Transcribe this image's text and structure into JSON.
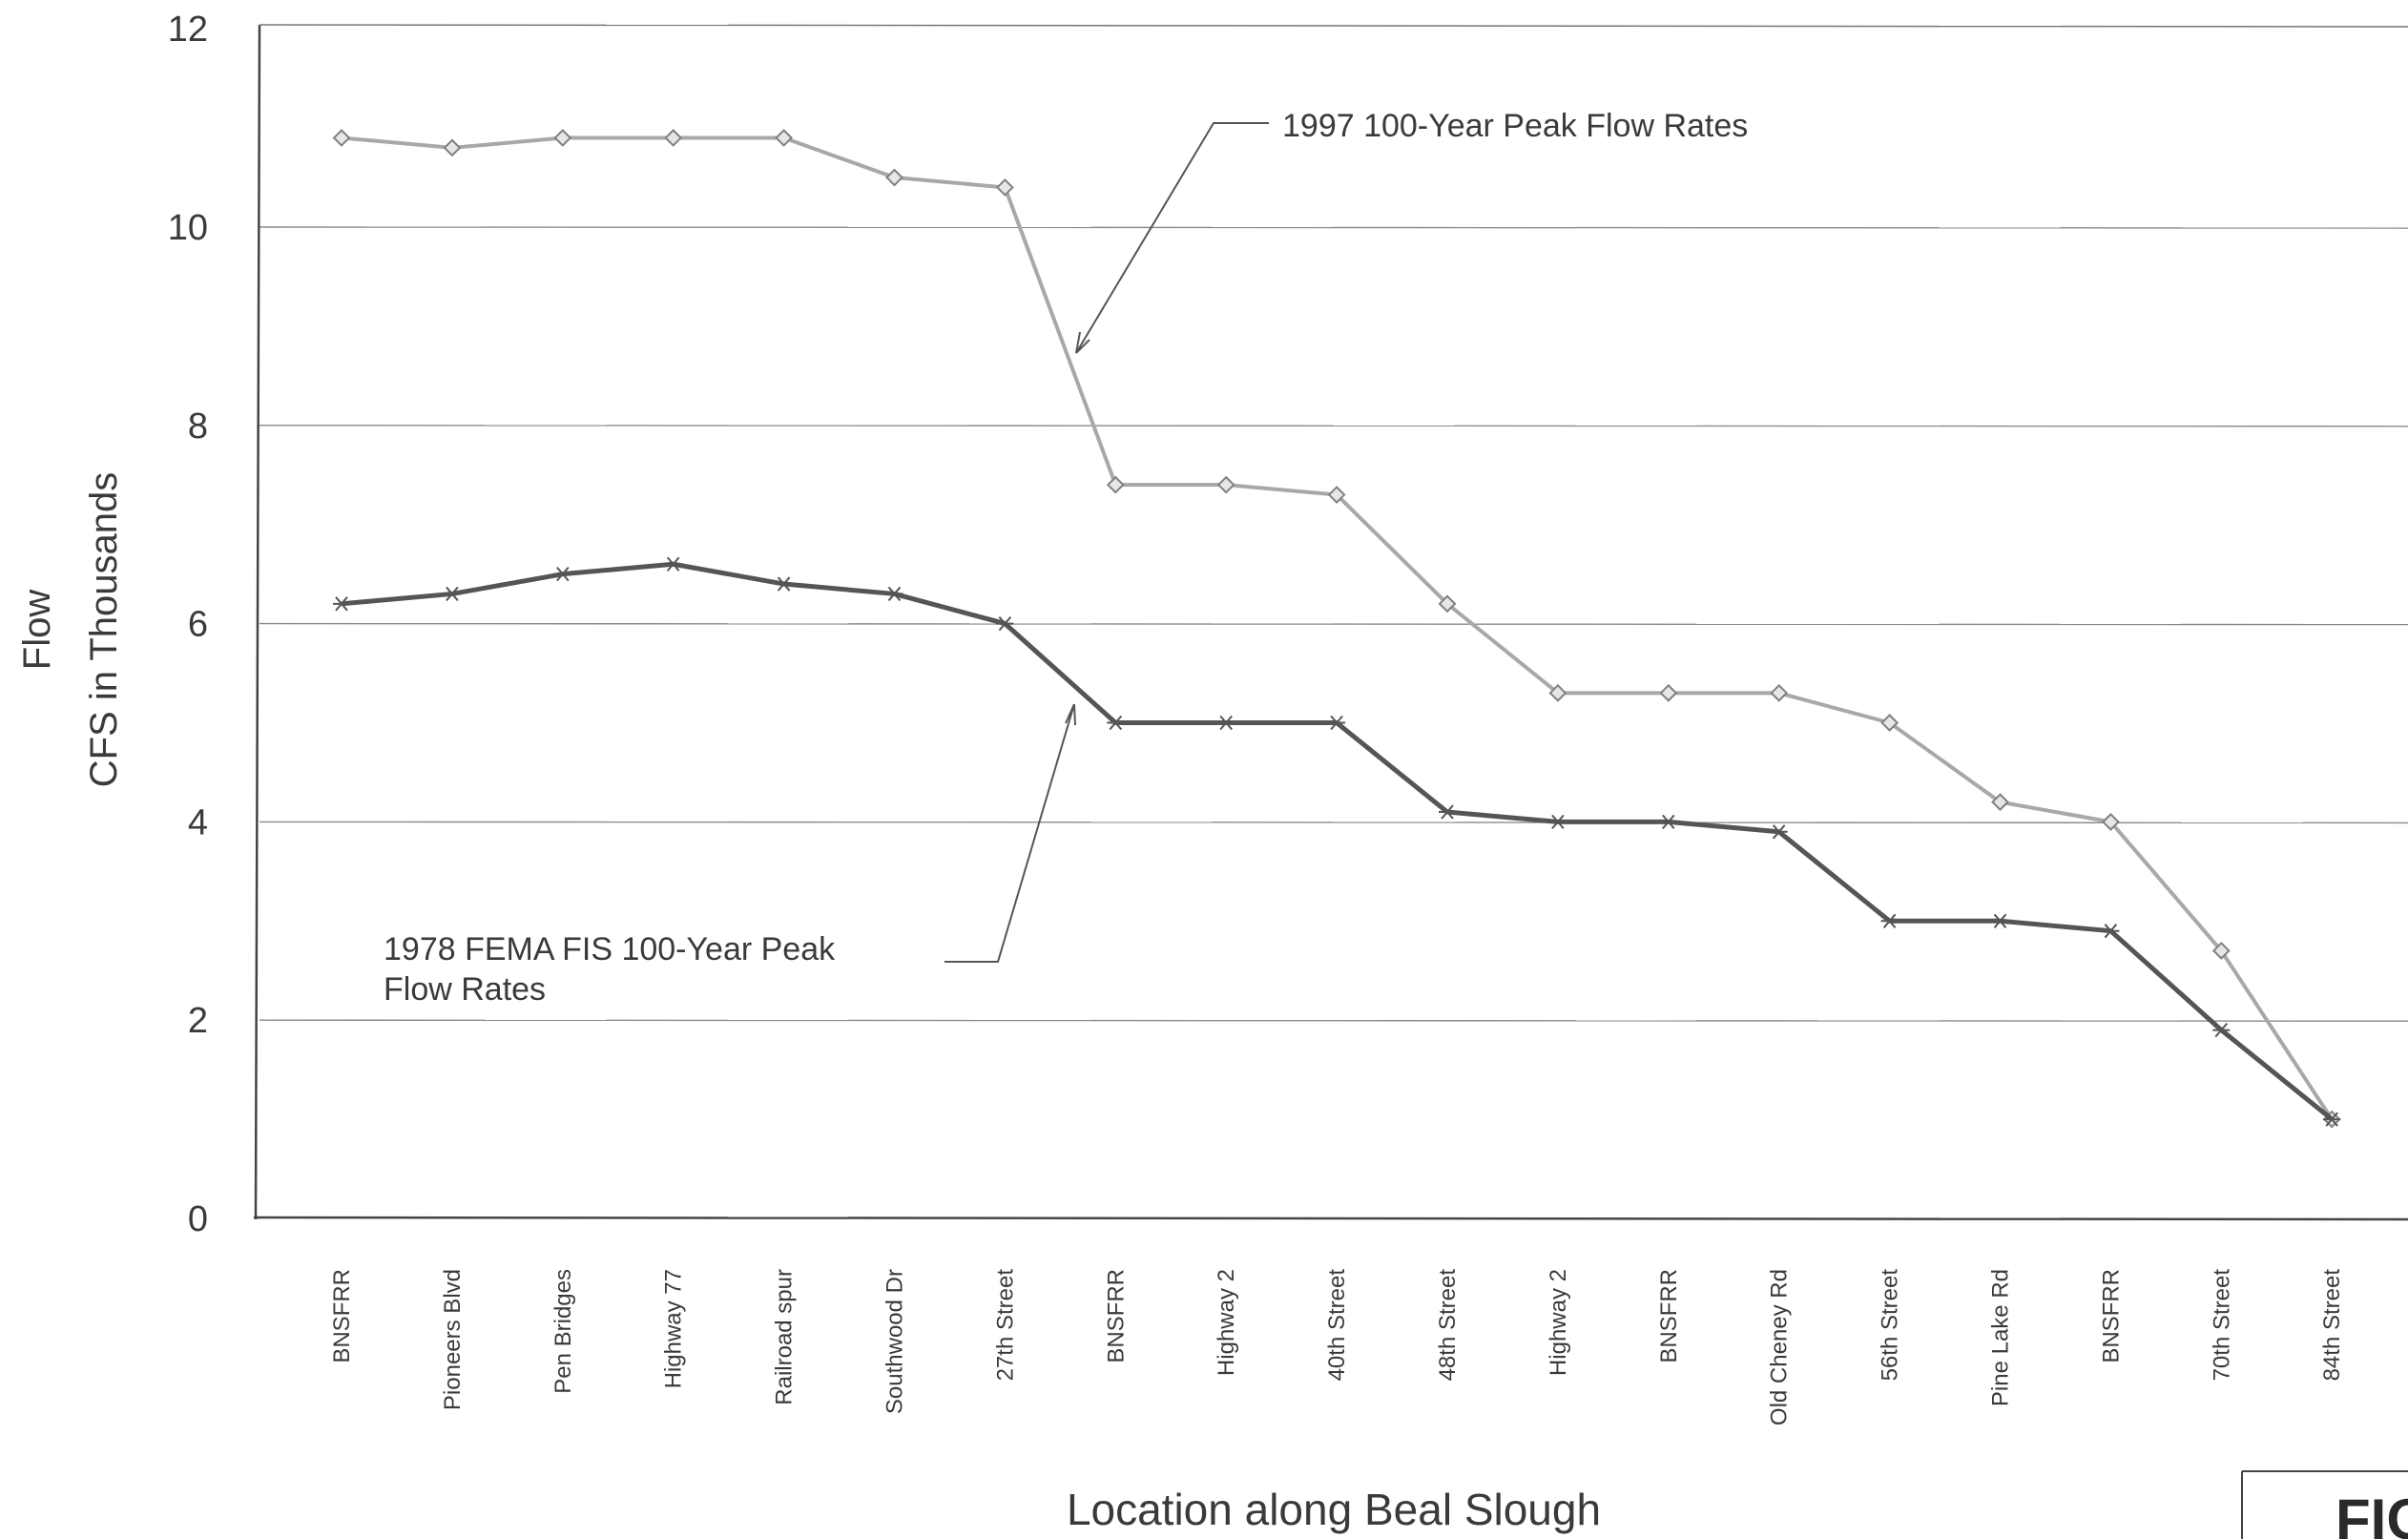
{
  "chart_data": {
    "type": "line",
    "ylabel_line1": "Flow",
    "ylabel_line2": "CFS in Thousands",
    "xlabel": "Location along Beal Slough",
    "ylim": [
      0,
      12
    ],
    "yticks": [
      "0",
      "2",
      "4",
      "6",
      "8",
      "10",
      "12"
    ],
    "grid": true,
    "categories": [
      "BNSFRR",
      "Pioneers Blvd",
      "Pen Bridges",
      "Highway 77",
      "Railroad spur",
      "Southwood Dr",
      "27th Street",
      "BNSFRR",
      "Highway 2",
      "40th Street",
      "48th Street",
      "Highway 2",
      "BNSFRR",
      "Old Cheney Rd",
      "56th Street",
      "Pine Lake Rd",
      "BNSFRR",
      "70th Street",
      "84th Street"
    ],
    "series": [
      {
        "name": "1997 100-Year Peak Flow Rates",
        "color": "#a8a8a8",
        "marker": "diamond",
        "values": [
          10.9,
          10.8,
          10.9,
          10.9,
          10.9,
          10.5,
          10.4,
          7.4,
          7.4,
          7.3,
          6.2,
          5.3,
          5.3,
          5.3,
          5.0,
          4.2,
          4.0,
          2.7,
          1.0
        ]
      },
      {
        "name": "1978 FEMA FIS 100-Year Peak Flow Rates",
        "color": "#555555",
        "marker": "star",
        "values": [
          6.2,
          6.3,
          6.5,
          6.6,
          6.4,
          6.3,
          6.0,
          5.0,
          5.0,
          5.0,
          4.1,
          4.0,
          4.0,
          3.9,
          3.0,
          3.0,
          2.9,
          1.9,
          1.0
        ]
      }
    ],
    "annotations": [
      {
        "lines": [
          "1997 100-Year Peak Flow Rates"
        ]
      },
      {
        "lines": [
          "1978 FEMA FIS 100-Year Peak",
          "Flow Rates"
        ]
      }
    ],
    "corner_text": "FIG"
  }
}
